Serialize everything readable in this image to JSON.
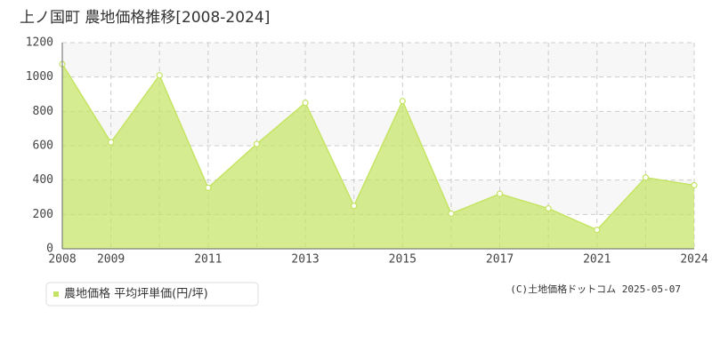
{
  "chart_data": {
    "type": "area",
    "title": "上ノ国町 農地価格推移[2008-2024]",
    "categories": [
      "2008",
      "2009",
      null,
      "2011",
      null,
      "2013",
      null,
      "2015",
      null,
      "2017",
      null,
      "2021",
      null,
      "2024"
    ],
    "series": [
      {
        "name": "農地価格 平均坪単価(円/坪)",
        "color": "#c5e463",
        "values": [
          1075,
          620,
          1010,
          355,
          610,
          850,
          250,
          860,
          205,
          320,
          235,
          110,
          415,
          370
        ]
      }
    ],
    "ylim": [
      0,
      1200
    ],
    "yticks": [
      0,
      200,
      400,
      600,
      800,
      1000,
      1200
    ],
    "grid": true,
    "source": "(C)土地価格ドットコム 2025-05-07"
  }
}
